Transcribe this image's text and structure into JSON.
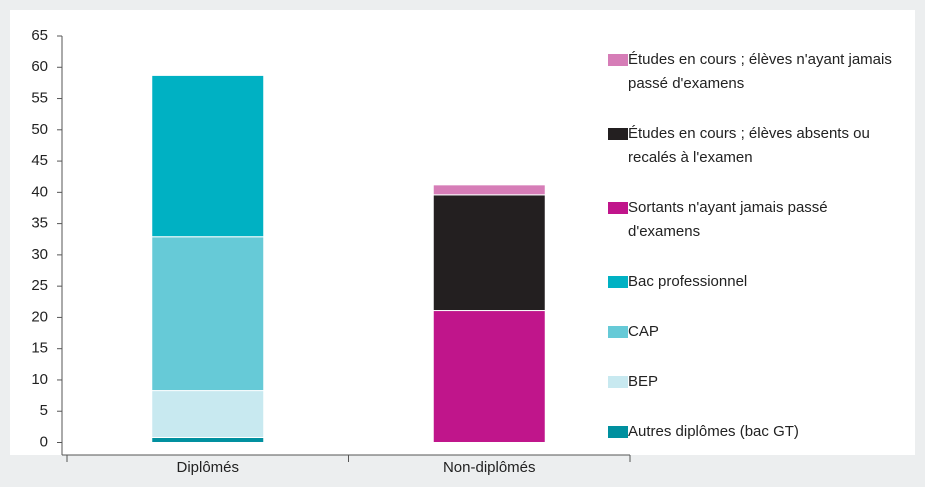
{
  "chart_data": {
    "type": "stacked_bar",
    "categories": [
      "Diplômés",
      "Non-diplômés"
    ],
    "series": [
      {
        "name": "Autres diplômes (bac GT)",
        "color": "#00909f",
        "values": [
          0.8,
          null
        ]
      },
      {
        "name": "BEP",
        "color": "#c8e9f0",
        "values": [
          7.5,
          null
        ]
      },
      {
        "name": "CAP",
        "color": "#66cad7",
        "values": [
          24.6,
          null
        ]
      },
      {
        "name": "Bac professionnel",
        "color": "#00b1c3",
        "values": [
          25.8,
          null
        ]
      },
      {
        "name": "Sortants n'ayant jamais passé d'examens",
        "color": "#c0158b",
        "values": [
          null,
          21.1
        ]
      },
      {
        "name": "Études en cours ; élèves absents ou recalés à l'examen",
        "color": "#231f20",
        "values": [
          null,
          18.5
        ]
      },
      {
        "name": "Études en cours ; élèves n'ayant jamais passé d'examens",
        "color": "#d67db7",
        "values": [
          null,
          1.6
        ]
      }
    ],
    "ylim": [
      -2,
      65
    ],
    "yticks": [
      0,
      5,
      10,
      15,
      20,
      25,
      30,
      35,
      40,
      45,
      50,
      55,
      60,
      65
    ],
    "legend": "right"
  }
}
